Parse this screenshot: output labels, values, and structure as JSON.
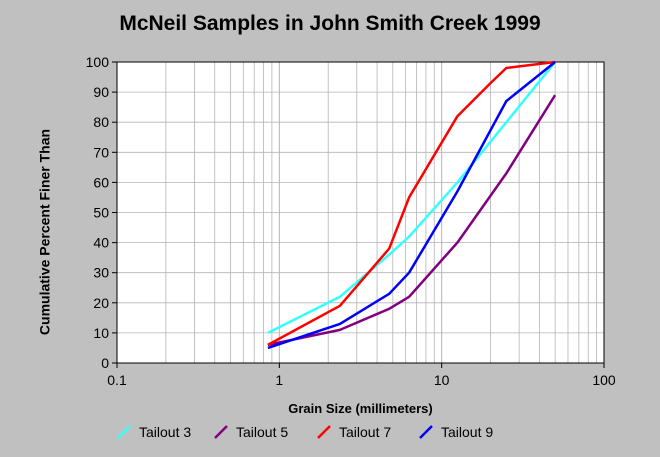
{
  "chart_data": {
    "type": "line",
    "title": "McNeil Samples in John Smith Creek 1999",
    "xlabel": "Grain Size (millimeters)",
    "ylabel": "Cumulative Percent Finer Than",
    "x_scale": "log",
    "xlim": [
      0.1,
      100
    ],
    "ylim": [
      0,
      100
    ],
    "x_ticks": [
      0.1,
      1,
      10,
      100
    ],
    "x_tick_labels": [
      "0.1",
      "1",
      "10",
      "100"
    ],
    "y_ticks": [
      0,
      10,
      20,
      30,
      40,
      50,
      60,
      70,
      80,
      90,
      100
    ],
    "grid": true,
    "legend_position": "bottom",
    "series": [
      {
        "name": "Tailout 3",
        "color": "#33ffff",
        "x": [
          0.85,
          2.36,
          4.75,
          6.3,
          12.5,
          25,
          50
        ],
        "y": [
          10,
          22,
          36,
          42,
          60,
          80,
          100
        ]
      },
      {
        "name": "Tailout 5",
        "color": "#800080",
        "x": [
          0.85,
          2.36,
          4.75,
          6.3,
          12.5,
          25,
          50
        ],
        "y": [
          6,
          11,
          18,
          22,
          40,
          63,
          89
        ]
      },
      {
        "name": "Tailout 7",
        "color": "#ff0000",
        "x": [
          0.85,
          2.36,
          4.75,
          6.3,
          12.5,
          20,
          25,
          50
        ],
        "y": [
          6,
          19,
          38,
          55,
          82,
          93,
          98,
          100
        ]
      },
      {
        "name": "Tailout 9",
        "color": "#0000ff",
        "x": [
          0.85,
          2.36,
          4.75,
          6.3,
          12.5,
          25,
          50
        ],
        "y": [
          5,
          13,
          23,
          30,
          57,
          87,
          100
        ]
      }
    ]
  }
}
